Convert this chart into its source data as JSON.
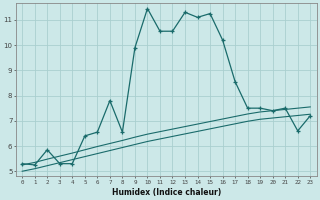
{
  "xlabel": "Humidex (Indice chaleur)",
  "xlim": [
    -0.5,
    23.5
  ],
  "ylim": [
    4.8,
    11.65
  ],
  "xticks": [
    0,
    1,
    2,
    3,
    4,
    5,
    6,
    7,
    8,
    9,
    10,
    11,
    12,
    13,
    14,
    15,
    16,
    17,
    18,
    19,
    20,
    21,
    22,
    23
  ],
  "yticks": [
    5,
    6,
    7,
    8,
    9,
    10,
    11
  ],
  "bg_color": "#cce8e8",
  "grid_color": "#aacfcf",
  "line_color": "#1a6b6b",
  "curve1_x": [
    0,
    1,
    2,
    3,
    4,
    5,
    6,
    7,
    8,
    9,
    10,
    11,
    12,
    13,
    14,
    15,
    16,
    17,
    18,
    19,
    20,
    21,
    22,
    23
  ],
  "curve1_y": [
    5.3,
    5.25,
    5.85,
    5.3,
    5.3,
    6.4,
    6.55,
    7.8,
    6.55,
    9.9,
    11.45,
    10.55,
    10.55,
    11.3,
    11.1,
    11.25,
    10.2,
    8.55,
    7.5,
    7.5,
    7.4,
    7.5,
    6.6,
    7.2
  ],
  "curve2_x": [
    0,
    1,
    2,
    3,
    4,
    5,
    6,
    7,
    8,
    9,
    10,
    11,
    12,
    13,
    14,
    15,
    16,
    17,
    18,
    19,
    20,
    21,
    22,
    23
  ],
  "curve2_y": [
    5.25,
    5.35,
    5.48,
    5.6,
    5.72,
    5.85,
    5.98,
    6.1,
    6.22,
    6.35,
    6.47,
    6.57,
    6.67,
    6.77,
    6.87,
    6.97,
    7.07,
    7.17,
    7.27,
    7.35,
    7.4,
    7.45,
    7.5,
    7.55
  ],
  "curve3_x": [
    0,
    1,
    2,
    3,
    4,
    5,
    6,
    7,
    8,
    9,
    10,
    11,
    12,
    13,
    14,
    15,
    16,
    17,
    18,
    19,
    20,
    21,
    22,
    23
  ],
  "curve3_y": [
    5.0,
    5.1,
    5.22,
    5.34,
    5.46,
    5.58,
    5.7,
    5.82,
    5.94,
    6.06,
    6.18,
    6.28,
    6.38,
    6.48,
    6.58,
    6.68,
    6.78,
    6.88,
    6.98,
    7.06,
    7.11,
    7.16,
    7.21,
    7.26
  ]
}
